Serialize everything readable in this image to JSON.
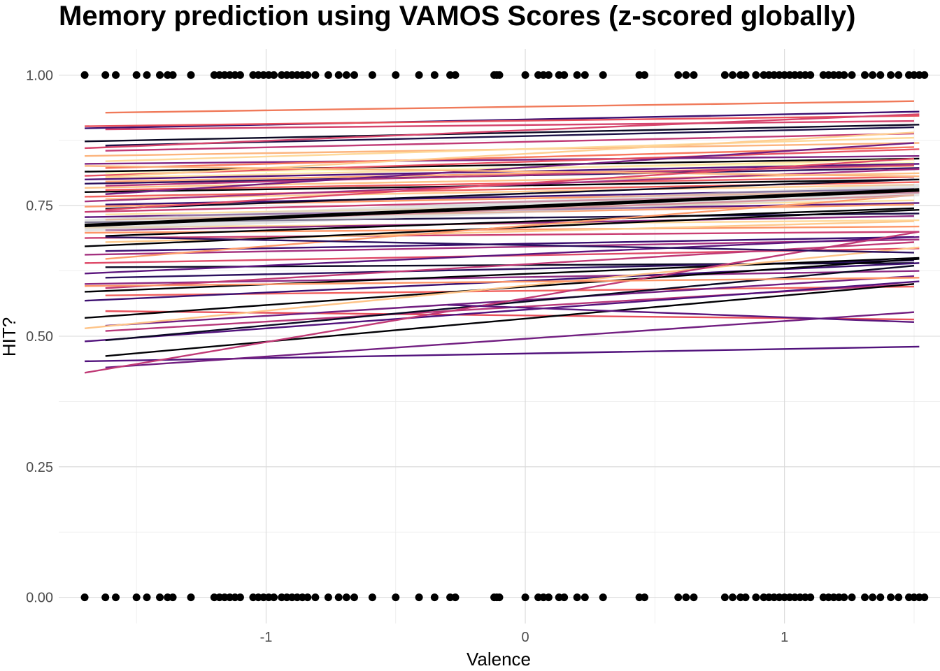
{
  "chart_data": {
    "type": "line",
    "title": "Memory prediction using VAMOS Scores (z-scored globally)",
    "xlabel": "Valence",
    "ylabel": "HIT?",
    "xlim": [
      -1.8,
      1.6
    ],
    "ylim": [
      -0.05,
      1.05
    ],
    "x_ticks": [
      -1,
      0,
      1
    ],
    "x_tick_labels": [
      "-1",
      "0",
      "1"
    ],
    "y_ticks": [
      0,
      0.25,
      0.5,
      0.75,
      1
    ],
    "y_tick_labels": [
      "0.00",
      "0.25",
      "0.50",
      "0.75",
      "1.00"
    ],
    "grid": true,
    "legend": "none",
    "points_x": [
      -1.7,
      -1.62,
      -1.58,
      -1.5,
      -1.46,
      -1.41,
      -1.38,
      -1.36,
      -1.29,
      -1.2,
      -1.18,
      -1.16,
      -1.14,
      -1.12,
      -1.1,
      -1.05,
      -1.03,
      -1.01,
      -0.99,
      -0.97,
      -0.94,
      -0.92,
      -0.9,
      -0.88,
      -0.86,
      -0.84,
      -0.81,
      -0.76,
      -0.72,
      -0.69,
      -0.66,
      -0.59,
      -0.5,
      -0.41,
      -0.35,
      -0.29,
      -0.27,
      -0.12,
      -0.11,
      -0.1,
      0.0,
      0.05,
      0.07,
      0.09,
      0.13,
      0.15,
      0.2,
      0.23,
      0.3,
      0.44,
      0.46,
      0.59,
      0.62,
      0.65,
      0.77,
      0.8,
      0.83,
      0.85,
      0.89,
      0.92,
      0.94,
      0.96,
      0.98,
      1.0,
      1.02,
      1.04,
      1.06,
      1.08,
      1.1,
      1.15,
      1.17,
      1.19,
      1.21,
      1.23,
      1.26,
      1.31,
      1.34,
      1.37,
      1.41,
      1.44,
      1.48,
      1.5,
      1.52,
      1.54
    ],
    "fit": {
      "name": "",
      "x": [
        -1.7,
        1.52
      ],
      "y": [
        0.712,
        0.78
      ],
      "color": "#000000",
      "width": 5
    },
    "series": [
      {
        "x": [
          -1.62,
          1.5
        ],
        "y": [
          0.928,
          0.95
        ],
        "color": "#f07a5a"
      },
      {
        "x": [
          -1.7,
          1.52
        ],
        "y": [
          0.898,
          0.93
        ],
        "color": "#3b0f70"
      },
      {
        "x": [
          -1.7,
          1.52
        ],
        "y": [
          0.902,
          0.922
        ],
        "color": "#e8505b"
      },
      {
        "x": [
          -1.62,
          1.5
        ],
        "y": [
          0.896,
          0.912
        ],
        "color": "#d5446d"
      },
      {
        "x": [
          -1.7,
          1.52
        ],
        "y": [
          0.873,
          0.905
        ],
        "color": "#0b0924"
      },
      {
        "x": [
          -1.62,
          1.5
        ],
        "y": [
          0.865,
          0.9
        ],
        "color": "#1d1147"
      },
      {
        "x": [
          -1.7,
          1.52
        ],
        "y": [
          0.86,
          0.925
        ],
        "color": "#d6456c"
      },
      {
        "x": [
          -1.62,
          1.5
        ],
        "y": [
          0.855,
          0.888
        ],
        "color": "#c03a76"
      },
      {
        "x": [
          -1.7,
          1.52
        ],
        "y": [
          0.845,
          0.87
        ],
        "color": "#fcb47d"
      },
      {
        "x": [
          -1.62,
          1.5
        ],
        "y": [
          0.835,
          0.88
        ],
        "color": "#fed99a"
      },
      {
        "x": [
          -1.7,
          1.52
        ],
        "y": [
          0.83,
          0.845
        ],
        "color": "#7e2482"
      },
      {
        "x": [
          -1.62,
          1.5
        ],
        "y": [
          0.822,
          0.862
        ],
        "color": "#f8765c"
      },
      {
        "x": [
          -1.7,
          1.52
        ],
        "y": [
          0.815,
          0.84
        ],
        "color": "#000004"
      },
      {
        "x": [
          -1.62,
          1.5
        ],
        "y": [
          0.812,
          0.832
        ],
        "color": "#fcfdbf"
      },
      {
        "x": [
          -1.7,
          1.52
        ],
        "y": [
          0.807,
          0.858
        ],
        "color": "#e75263"
      },
      {
        "x": [
          -1.62,
          1.5
        ],
        "y": [
          0.803,
          0.838
        ],
        "color": "#fde3a5"
      },
      {
        "x": [
          -1.7,
          1.52
        ],
        "y": [
          0.8,
          0.83
        ],
        "color": "#51127c"
      },
      {
        "x": [
          -1.62,
          1.5
        ],
        "y": [
          0.796,
          0.826
        ],
        "color": "#fea772"
      },
      {
        "x": [
          -1.7,
          1.52
        ],
        "y": [
          0.792,
          0.822
        ],
        "color": "#2c115f"
      },
      {
        "x": [
          -1.62,
          1.5
        ],
        "y": [
          0.788,
          0.828
        ],
        "color": "#b73779"
      },
      {
        "x": [
          -1.7,
          1.52
        ],
        "y": [
          0.784,
          0.812
        ],
        "color": "#fec488"
      },
      {
        "x": [
          -1.62,
          1.5
        ],
        "y": [
          0.78,
          0.805
        ],
        "color": "#ed5a5f"
      },
      {
        "x": [
          -1.7,
          1.52
        ],
        "y": [
          0.776,
          0.8
        ],
        "color": "#000004"
      },
      {
        "x": [
          -1.62,
          1.5
        ],
        "y": [
          0.772,
          0.87
        ],
        "color": "#721f81"
      },
      {
        "x": [
          -1.7,
          1.52
        ],
        "y": [
          0.767,
          0.795
        ],
        "color": "#f1605d"
      },
      {
        "x": [
          -1.62,
          1.5
        ],
        "y": [
          0.763,
          0.79
        ],
        "color": "#fece91"
      },
      {
        "x": [
          -1.7,
          1.52
        ],
        "y": [
          0.758,
          0.82
        ],
        "color": "#a3307e"
      },
      {
        "x": [
          -1.62,
          1.5
        ],
        "y": [
          0.752,
          0.782
        ],
        "color": "#3b0f70"
      },
      {
        "x": [
          -1.7,
          1.52
        ],
        "y": [
          0.748,
          0.778
        ],
        "color": "#fd9a6a"
      },
      {
        "x": [
          -1.62,
          1.5
        ],
        "y": [
          0.744,
          0.8
        ],
        "color": "#0b0924"
      },
      {
        "x": [
          -1.7,
          1.52
        ],
        "y": [
          0.738,
          0.775
        ],
        "color": "#c83e73"
      },
      {
        "x": [
          -1.62,
          1.5
        ],
        "y": [
          0.733,
          0.76
        ],
        "color": "#fde3a5"
      },
      {
        "x": [
          -1.7,
          1.52
        ],
        "y": [
          0.728,
          0.755
        ],
        "color": "#5b167e"
      },
      {
        "x": [
          -1.62,
          1.5
        ],
        "y": [
          0.723,
          0.752
        ],
        "color": "#fba06f"
      },
      {
        "x": [
          -1.7,
          1.52
        ],
        "y": [
          0.718,
          0.735
        ],
        "color": "#1d1147"
      },
      {
        "x": [
          -1.62,
          1.5
        ],
        "y": [
          0.714,
          0.77
        ],
        "color": "#e04c66"
      },
      {
        "x": [
          -1.7,
          1.52
        ],
        "y": [
          0.708,
          0.722
        ],
        "color": "#fed99a"
      },
      {
        "x": [
          -1.62,
          1.5
        ],
        "y": [
          0.703,
          0.73
        ],
        "color": "#8c2981"
      },
      {
        "x": [
          -1.7,
          1.52
        ],
        "y": [
          0.698,
          0.71
        ],
        "color": "#fd9567"
      },
      {
        "x": [
          -1.62,
          1.5
        ],
        "y": [
          0.692,
          0.745
        ],
        "color": "#000004"
      },
      {
        "x": [
          -1.7,
          1.52
        ],
        "y": [
          0.688,
          0.7
        ],
        "color": "#ca3e72"
      },
      {
        "x": [
          -1.62,
          1.5
        ],
        "y": [
          0.68,
          0.72
        ],
        "color": "#feca8d"
      },
      {
        "x": [
          -1.7,
          1.52
        ],
        "y": [
          0.672,
          0.742
        ],
        "color": "#000004"
      },
      {
        "x": [
          -1.62,
          1.5
        ],
        "y": [
          0.663,
          0.69
        ],
        "color": "#3b0f70"
      },
      {
        "x": [
          -1.7,
          1.52
        ],
        "y": [
          0.656,
          0.685
        ],
        "color": "#a3307e"
      },
      {
        "x": [
          -1.62,
          1.5
        ],
        "y": [
          0.648,
          0.77
        ],
        "color": "#fd9a6a"
      },
      {
        "x": [
          -1.7,
          1.52
        ],
        "y": [
          0.64,
          0.668
        ],
        "color": "#de4968"
      },
      {
        "x": [
          -1.62,
          1.5
        ],
        "y": [
          0.632,
          0.64
        ],
        "color": "#0b0924"
      },
      {
        "x": [
          -1.7,
          1.52
        ],
        "y": [
          0.62,
          0.69
        ],
        "color": "#5b167e"
      },
      {
        "x": [
          -1.62,
          1.5
        ],
        "y": [
          0.612,
          0.645
        ],
        "color": "#2c115f"
      },
      {
        "x": [
          -1.7,
          1.52
        ],
        "y": [
          0.6,
          0.625
        ],
        "color": "#8c2981"
      },
      {
        "x": [
          -1.62,
          1.5
        ],
        "y": [
          0.592,
          0.68
        ],
        "color": "#c03a76"
      },
      {
        "x": [
          -1.7,
          1.52
        ],
        "y": [
          0.585,
          0.65
        ],
        "color": "#000004"
      },
      {
        "x": [
          -1.62,
          1.5
        ],
        "y": [
          0.578,
          0.595
        ],
        "color": "#f1605d"
      },
      {
        "x": [
          -1.7,
          1.52
        ],
        "y": [
          0.568,
          0.64
        ],
        "color": "#3b0f70"
      },
      {
        "x": [
          -1.62,
          1.5
        ],
        "y": [
          0.548,
          0.532
        ],
        "color": "#e8505b"
      },
      {
        "x": [
          -1.7,
          1.52
        ],
        "y": [
          0.535,
          0.648
        ],
        "color": "#000004"
      },
      {
        "x": [
          -1.62,
          1.5
        ],
        "y": [
          0.52,
          0.615
        ],
        "color": "#721f81"
      },
      {
        "x": [
          -1.7,
          1.52
        ],
        "y": [
          0.515,
          0.67
        ],
        "color": "#fec488"
      },
      {
        "x": [
          -1.62,
          1.5
        ],
        "y": [
          0.51,
          0.6
        ],
        "color": "#b73779"
      },
      {
        "x": [
          -1.7,
          1.52
        ],
        "y": [
          0.49,
          0.605
        ],
        "color": "#51127c"
      },
      {
        "x": [
          -1.62,
          1.5
        ],
        "y": [
          0.492,
          0.635
        ],
        "color": "#0b0924"
      },
      {
        "x": [
          -1.62,
          1.5
        ],
        "y": [
          0.462,
          0.6
        ],
        "color": "#000004"
      },
      {
        "x": [
          -1.7,
          1.52
        ],
        "y": [
          0.452,
          0.48
        ],
        "color": "#51127c"
      },
      {
        "x": [
          -1.62,
          1.5
        ],
        "y": [
          0.44,
          0.546
        ],
        "color": "#721f81"
      },
      {
        "x": [
          -1.7,
          1.52
        ],
        "y": [
          0.43,
          0.7
        ],
        "color": "#c03a76"
      },
      {
        "x": [
          -0.3,
          1.5
        ],
        "y": [
          0.56,
          0.527
        ],
        "color": "#5b167e"
      },
      {
        "x": [
          -1.62,
          1.5
        ],
        "y": [
          0.69,
          0.66
        ],
        "color": "#2c115f"
      },
      {
        "x": [
          -1.7,
          1.52
        ],
        "y": [
          0.596,
          0.612
        ],
        "color": "#fd9567"
      },
      {
        "x": [
          -1.62,
          1.5
        ],
        "y": [
          0.805,
          0.89
        ],
        "color": "#fece91"
      },
      {
        "x": [
          -1.7,
          1.52
        ],
        "y": [
          0.826,
          0.806
        ],
        "color": "#fcb47d"
      },
      {
        "x": [
          -1.62,
          1.5
        ],
        "y": [
          0.742,
          0.84
        ],
        "color": "#de4968"
      }
    ]
  }
}
